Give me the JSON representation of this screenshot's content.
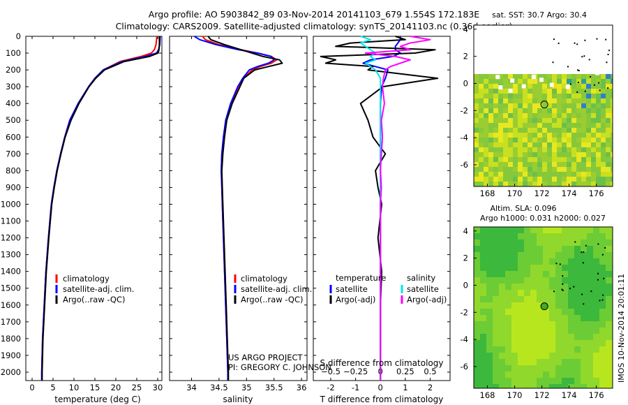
{
  "header": {
    "line1": "Argo profile: AO 5903842_89 03-Nov-2014 20141103_679 1.554S 172.183E",
    "line2": "Climatology: CARS2009. Satellite-adjusted climatology: synTS_20141103.nc (0.36d earlier)"
  },
  "colors": {
    "clim": "#ff0000",
    "sat": "#0000ff",
    "argo": "#000000",
    "sat_s": "#00e5ee",
    "argo_s": "#ff00ff",
    "map_dot": "#44aa22"
  },
  "chart_data": [
    {
      "id": "temperature",
      "type": "line",
      "xlabel": "temperature (deg C)",
      "xlim": [
        -1.5,
        31
      ],
      "ylim": [
        2050,
        0
      ],
      "xticks": [
        0,
        5,
        10,
        15,
        20,
        25,
        30
      ],
      "yticks": [
        0,
        100,
        200,
        300,
        400,
        500,
        600,
        700,
        800,
        900,
        1000,
        1100,
        1200,
        1300,
        1400,
        1500,
        1600,
        1700,
        1800,
        1900,
        2000
      ],
      "legend": [
        "climatology",
        "satellite-adj. clim.",
        "Argo(..raw -QC)"
      ],
      "depth": [
        0,
        50,
        80,
        100,
        120,
        150,
        200,
        250,
        300,
        400,
        500,
        600,
        700,
        800,
        900,
        1000,
        1200,
        1400,
        1600,
        1800,
        2000,
        2050
      ],
      "series": [
        {
          "name": "climatology",
          "values": [
            29.8,
            29.6,
            29.2,
            28.5,
            26,
            21,
            17,
            15,
            13.5,
            11,
            9,
            7.8,
            6.8,
            5.9,
            5.2,
            4.6,
            3.9,
            3.3,
            2.9,
            2.5,
            2.3,
            2.3
          ]
        },
        {
          "name": "satellite",
          "values": [
            30.6,
            30.5,
            30.2,
            29.7,
            27,
            21.5,
            17,
            15,
            13.5,
            11,
            9,
            7.8,
            6.8,
            5.9,
            5.2,
            4.6,
            3.9,
            3.3,
            2.9,
            2.5,
            2.3,
            2.3
          ]
        },
        {
          "name": "argo",
          "values": [
            30.4,
            30.4,
            30.3,
            30.1,
            28,
            22,
            17.3,
            15.2,
            13.6,
            11.2,
            9.3,
            7.9,
            6.9,
            6.0,
            5.3,
            4.7,
            4.0,
            3.4,
            3.0,
            2.6,
            2.4,
            2.4
          ]
        }
      ]
    },
    {
      "id": "salinity",
      "type": "line",
      "xlabel": "salinity",
      "xlim": [
        33.6,
        36.1
      ],
      "ylim": [
        2050,
        0
      ],
      "xticks": [
        34,
        34.5,
        35,
        35.5,
        36
      ],
      "legend": [
        "climatology",
        "satellite-adj. clim.",
        "Argo(..raw -QC)"
      ],
      "annotation": [
        "US ARGO PROJECT",
        "PI: GREGORY C. JOHNSON"
      ],
      "depth": [
        0,
        20,
        50,
        80,
        100,
        120,
        140,
        160,
        180,
        200,
        250,
        300,
        400,
        500,
        600,
        700,
        800,
        900,
        1000,
        1200,
        1400,
        1600,
        1800,
        2000,
        2050
      ],
      "series": [
        {
          "name": "climatology",
          "values": [
            34.2,
            34.25,
            34.5,
            34.9,
            35.2,
            35.45,
            35.55,
            35.45,
            35.25,
            35.1,
            34.95,
            34.85,
            34.72,
            34.63,
            34.58,
            34.55,
            34.54,
            34.55,
            34.56,
            34.58,
            34.6,
            34.62,
            34.64,
            34.66,
            34.66
          ]
        },
        {
          "name": "satellite",
          "values": [
            34.05,
            34.15,
            34.45,
            34.85,
            35.2,
            35.45,
            35.5,
            35.4,
            35.2,
            35.05,
            34.93,
            34.84,
            34.71,
            34.62,
            34.58,
            34.55,
            34.54,
            34.55,
            34.56,
            34.58,
            34.6,
            34.62,
            34.64,
            34.66,
            34.66
          ]
        },
        {
          "name": "argo",
          "values": [
            34.3,
            34.35,
            34.6,
            34.9,
            35.1,
            35.3,
            35.6,
            35.65,
            35.4,
            35.15,
            34.95,
            34.88,
            34.74,
            34.64,
            34.6,
            34.57,
            34.55,
            34.56,
            34.57,
            34.59,
            34.61,
            34.63,
            34.65,
            34.67,
            34.67
          ]
        }
      ]
    },
    {
      "id": "differences",
      "type": "line",
      "xlabel": "T difference from climatology",
      "xlabel_top": "S difference from climatology",
      "xlim": [
        -2.7,
        2.8
      ],
      "ylim": [
        2050,
        0
      ],
      "xticks": [
        -2,
        -1,
        0,
        1,
        2
      ],
      "xticks_s": [
        -0.5,
        -0.25,
        0,
        0.25,
        0.5
      ],
      "legend_headers": [
        "temperature",
        "salinity"
      ],
      "legend": [
        "satellite",
        "Argo(-adj)",
        "satellite",
        "Argo(-adj)"
      ],
      "depth": [
        0,
        20,
        40,
        60,
        80,
        100,
        120,
        140,
        160,
        180,
        200,
        250,
        300,
        400,
        500,
        600,
        700,
        800,
        900,
        1000,
        1200,
        1400,
        1600,
        1800,
        2000,
        2050
      ],
      "series": [
        {
          "name": "T satellite",
          "values": [
            0.8,
            0.8,
            0.7,
            0.6,
            0.6,
            0.8,
            0.5,
            -0.4,
            -0.7,
            -0.2,
            0.3,
            0.2,
            0.05,
            0,
            0,
            0,
            0,
            0,
            0,
            0,
            0,
            0,
            0,
            0,
            0,
            0
          ]
        },
        {
          "name": "T argo",
          "values": [
            0.6,
            1.0,
            -1.2,
            -1.8,
            2.2,
            1.4,
            -2.4,
            -1.8,
            -2.2,
            -0.3,
            -0.5,
            2.3,
            0.1,
            -0.8,
            -0.5,
            -0.3,
            0.2,
            -0.2,
            -0.1,
            0.05,
            -0.1,
            0.05,
            0,
            0,
            0,
            0
          ]
        },
        {
          "name": "S satellite",
          "values": [
            -0.2,
            -0.1,
            -0.2,
            -0.15,
            -0.1,
            -0.05,
            -0.1,
            -0.05,
            -0.15,
            -0.1,
            -0.05,
            0,
            0,
            0,
            0,
            0,
            0,
            0,
            0,
            0,
            0,
            0,
            0,
            0,
            0,
            0
          ]
        },
        {
          "name": "S argo",
          "values": [
            0.3,
            0.5,
            0.3,
            0.2,
            0.3,
            -0.15,
            0.15,
            0.3,
            0.2,
            0.1,
            0.05,
            0.03,
            0.02,
            0.04,
            0.01,
            0.02,
            0.01,
            0.0,
            0.01,
            0.0,
            0.0,
            0.0,
            0.0,
            0.0,
            0.0,
            0.0
          ]
        }
      ]
    },
    {
      "id": "sst_map",
      "type": "heatmap",
      "title": "sat. SST: 30.7  Argo: 30.4",
      "xlim": [
        167,
        177.2
      ],
      "ylim": [
        -7.6,
        4.3
      ],
      "xticks": [
        168,
        170,
        172,
        174,
        176
      ],
      "yticks": [
        4,
        2,
        0,
        -2,
        -4,
        -6
      ],
      "point": [
        172.183,
        -1.554
      ]
    },
    {
      "id": "sla_map",
      "type": "heatmap",
      "title": "Altim. SLA: 0.096",
      "subtitle": "Argo h1000: 0.031  h2000: 0.027",
      "xlim": [
        167,
        177.2
      ],
      "ylim": [
        -7.6,
        4.3
      ],
      "xticks": [
        168,
        170,
        172,
        174,
        176
      ],
      "yticks": [
        4,
        2,
        0,
        -2,
        -4,
        -6
      ],
      "point": [
        172.183,
        -1.554
      ]
    }
  ],
  "footer": {
    "stamp": "IMOS 10-Nov-2014 20:01:11"
  }
}
